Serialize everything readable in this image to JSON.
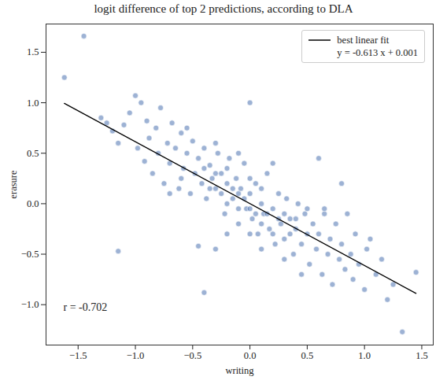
{
  "chart_data": {
    "type": "scatter",
    "title": "logit difference of top 2 predictions, according to DLA",
    "x_label": "writing",
    "y_label": "erasure",
    "xlim": [
      -1.78,
      1.6
    ],
    "ylim": [
      -1.4,
      1.78
    ],
    "xticks": [
      {
        "value": -1.5,
        "label": "−1.5"
      },
      {
        "value": -1,
        "label": "−1.0"
      },
      {
        "value": -0.5,
        "label": "−0.5"
      },
      {
        "value": 0,
        "label": "0.0"
      },
      {
        "value": 0.5,
        "label": "0.5"
      },
      {
        "value": 1,
        "label": "1.0"
      },
      {
        "value": 1.5,
        "label": "1.5"
      }
    ],
    "yticks": [
      {
        "value": -1,
        "label": "−1.0"
      },
      {
        "value": -0.5,
        "label": "−0.5"
      },
      {
        "value": 0,
        "label": "0.0"
      },
      {
        "value": 0.5,
        "label": "0.5"
      },
      {
        "value": 1,
        "label": "1.0"
      },
      {
        "value": 1.5,
        "label": "1.5"
      }
    ],
    "grid": false,
    "legend": "upper right",
    "color": "#4c72b0",
    "marker": "circle",
    "x": [
      -1.62,
      -1.45,
      -1.3,
      -1.25,
      -1.2,
      -1.15,
      -1.15,
      -1.1,
      -1.05,
      -1.0,
      -0.98,
      -0.95,
      -0.92,
      -0.9,
      -0.88,
      -0.85,
      -0.82,
      -0.8,
      -0.78,
      -0.75,
      -0.72,
      -0.7,
      -0.68,
      -0.65,
      -0.62,
      -0.6,
      -0.58,
      -0.55,
      -0.52,
      -0.5,
      -0.48,
      -0.45,
      -0.45,
      -0.42,
      -0.4,
      -0.4,
      -0.38,
      -0.35,
      -0.33,
      -0.3,
      -0.3,
      -0.28,
      -0.25,
      -0.22,
      -0.2,
      -0.18,
      -0.15,
      -0.12,
      -0.1,
      -0.08,
      -0.05,
      -0.03,
      0.0,
      0.0,
      0.02,
      0.05,
      0.07,
      0.1,
      0.12,
      0.15,
      0.17,
      0.2,
      0.22,
      0.25,
      0.27,
      0.3,
      0.32,
      0.35,
      0.38,
      0.4,
      0.42,
      0.45,
      0.48,
      0.5,
      0.52,
      0.55,
      0.58,
      0.6,
      0.6,
      0.63,
      0.65,
      0.68,
      0.7,
      0.72,
      0.75,
      0.78,
      0.8,
      0.8,
      0.83,
      0.85,
      0.88,
      0.9,
      0.92,
      0.95,
      1.0,
      1.02,
      1.05,
      1.1,
      1.15,
      1.2,
      1.25,
      1.33,
      1.45,
      -0.2,
      -0.1,
      0.1,
      0.0,
      -0.15,
      0.15,
      -0.25,
      0.25,
      -0.05,
      0.05,
      -0.35,
      0.35,
      -0.3,
      0.3,
      -0.4,
      0.4,
      -0.1,
      0.1,
      -0.2,
      0.2,
      0.0,
      0.0,
      -0.6,
      0.5,
      -0.55,
      0.45,
      -0.7,
      0.65,
      0.2,
      -0.2,
      0.1,
      -0.1,
      -0.3,
      0.3
    ],
    "y": [
      1.25,
      1.66,
      0.85,
      0.8,
      0.72,
      0.6,
      -0.47,
      0.78,
      0.9,
      1.07,
      0.55,
      1.0,
      0.42,
      0.82,
      0.65,
      0.3,
      0.75,
      0.5,
      0.95,
      0.2,
      0.6,
      0.4,
      0.8,
      0.55,
      0.15,
      0.7,
      0.35,
      0.5,
      0.1,
      0.62,
      0.3,
      -0.42,
      0.45,
      0.2,
      -0.88,
      0.55,
      0.05,
      0.38,
      0.25,
      -0.45,
      0.15,
      0.5,
      0.3,
      -0.1,
      0.2,
      0.45,
      0.05,
      0.25,
      -0.2,
      0.15,
      0.4,
      -0.05,
      1.0,
      0.1,
      -0.15,
      0.2,
      -0.3,
      0.0,
      -0.1,
      0.3,
      -0.25,
      -0.05,
      -0.4,
      0.1,
      -0.2,
      -0.35,
      0.05,
      -0.15,
      -0.5,
      -0.25,
      0.0,
      -0.4,
      -0.1,
      -0.3,
      -0.6,
      -0.2,
      -0.45,
      0.45,
      -0.3,
      -0.7,
      -0.1,
      -0.5,
      -0.35,
      -0.8,
      -0.2,
      -0.55,
      0.2,
      -0.4,
      -0.65,
      -0.1,
      -0.5,
      -0.75,
      -0.3,
      -0.6,
      -0.85,
      -0.45,
      -0.35,
      -0.7,
      -0.55,
      -0.95,
      -0.8,
      -1.27,
      -0.68,
      0.0,
      0.1,
      -0.2,
      -0.05,
      0.15,
      -0.1,
      0.1,
      -0.15,
      0.05,
      -0.1,
      0.15,
      -0.3,
      0.3,
      -0.1,
      0.35,
      -0.15,
      -0.05,
      0.15,
      0.35,
      -0.3,
      0.25,
      -0.3,
      0.25,
      -0.05,
      0.75,
      -0.7,
      0.1,
      -0.05,
      0.4,
      -0.3,
      -0.45,
      0.5,
      0.6,
      -0.55
    ],
    "fit": {
      "name": "best linear fit",
      "label": "y = -0.613 x + 0.001",
      "type": "line",
      "color": "#000000",
      "line_style": "solid",
      "x": [
        -1.62,
        1.45
      ],
      "y": [
        0.994,
        -0.888
      ]
    },
    "annotations": [
      "r = -0.702"
    ]
  }
}
